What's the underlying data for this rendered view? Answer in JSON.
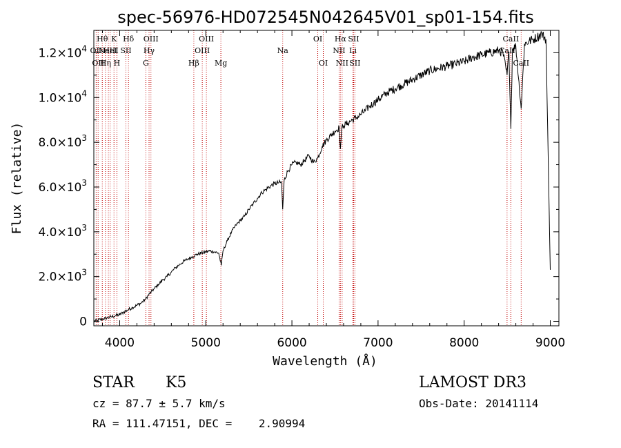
{
  "chart_data": {
    "type": "line",
    "title": "spec-56976-HD072545N042645V01_sp01-154.fits",
    "xlabel": "Wavelength (Å)",
    "ylabel": "Flux (relative)",
    "xlim": [
      3700,
      9100
    ],
    "ylim": [
      -200,
      13000
    ],
    "x_ticks": [
      {
        "value": 4000,
        "label": "4000"
      },
      {
        "value": 5000,
        "label": "5000"
      },
      {
        "value": 6000,
        "label": "6000"
      },
      {
        "value": 7000,
        "label": "7000"
      },
      {
        "value": 8000,
        "label": "8000"
      },
      {
        "value": 9000,
        "label": "9000"
      }
    ],
    "y_ticks": [
      {
        "value": 0,
        "mantissa": "0",
        "exp": ""
      },
      {
        "value": 2000,
        "mantissa": "2.0×10",
        "exp": "3"
      },
      {
        "value": 4000,
        "mantissa": "4.0×10",
        "exp": "3"
      },
      {
        "value": 6000,
        "mantissa": "6.0×10",
        "exp": "3"
      },
      {
        "value": 8000,
        "mantissa": "8.0×10",
        "exp": "3"
      },
      {
        "value": 10000,
        "mantissa": "1.0×10",
        "exp": "4"
      },
      {
        "value": 12000,
        "mantissa": "1.2×10",
        "exp": "4"
      }
    ],
    "series": [
      {
        "name": "spectrum",
        "x": [
          3700,
          3750,
          3800,
          3850,
          3900,
          3950,
          4000,
          4050,
          4100,
          4150,
          4200,
          4250,
          4300,
          4350,
          4400,
          4450,
          4500,
          4550,
          4600,
          4650,
          4700,
          4750,
          4800,
          4850,
          4900,
          4950,
          5000,
          5050,
          5100,
          5150,
          5180,
          5200,
          5250,
          5300,
          5350,
          5400,
          5450,
          5500,
          5550,
          5600,
          5650,
          5700,
          5750,
          5800,
          5850,
          5880,
          5893,
          5910,
          5950,
          6000,
          6050,
          6100,
          6150,
          6200,
          6250,
          6300,
          6350,
          6400,
          6450,
          6500,
          6550,
          6563,
          6580,
          6600,
          6650,
          6700,
          6750,
          6800,
          6850,
          6900,
          6950,
          7000,
          7100,
          7200,
          7300,
          7400,
          7500,
          7600,
          7700,
          7800,
          7900,
          8000,
          8100,
          8200,
          8300,
          8400,
          8450,
          8498,
          8520,
          8542,
          8560,
          8600,
          8662,
          8700,
          8750,
          8800,
          8850,
          8900,
          8950,
          9000
        ],
        "y": [
          0,
          50,
          100,
          150,
          200,
          250,
          300,
          420,
          520,
          620,
          720,
          820,
          1000,
          1250,
          1450,
          1650,
          1850,
          2000,
          2200,
          2400,
          2550,
          2700,
          2800,
          2900,
          3000,
          3050,
          3100,
          3150,
          3100,
          3050,
          2500,
          3150,
          3600,
          4000,
          4300,
          4500,
          4700,
          5000,
          5250,
          5500,
          5750,
          5900,
          6050,
          6150,
          6200,
          6200,
          5000,
          6300,
          6700,
          7000,
          7100,
          7000,
          7200,
          7400,
          7100,
          7300,
          7800,
          8100,
          8300,
          8500,
          8650,
          7700,
          8700,
          8750,
          8850,
          9000,
          9100,
          9250,
          9400,
          9600,
          9750,
          9900,
          10200,
          10400,
          10600,
          10800,
          11000,
          11200,
          11300,
          11400,
          11500,
          11600,
          11800,
          11900,
          12000,
          12100,
          12000,
          11000,
          12050,
          8600,
          12150,
          12300,
          9500,
          12400,
          12500,
          12600,
          12700,
          12850,
          12600,
          2300
        ]
      }
    ],
    "lines": [
      {
        "wave": 3727,
        "label": "OII",
        "row": 2
      },
      {
        "wave": 3750,
        "label": "OII",
        "row": 3
      },
      {
        "wave": 3798,
        "label": "Hθ",
        "row": 1
      },
      {
        "wave": 3835,
        "label": "Hη",
        "row": 3
      },
      {
        "wave": 3869,
        "label": "NeIII",
        "row": 2
      },
      {
        "wave": 3889,
        "label": "HeI",
        "row": 2
      },
      {
        "wave": 3934,
        "label": "K",
        "row": 1
      },
      {
        "wave": 3968,
        "label": "H",
        "row": 3
      },
      {
        "wave": 4072,
        "label": "SII",
        "row": 2
      },
      {
        "wave": 4102,
        "label": "Hδ",
        "row": 1
      },
      {
        "wave": 4304,
        "label": "G",
        "row": 3
      },
      {
        "wave": 4341,
        "label": "Hγ",
        "row": 2
      },
      {
        "wave": 4363,
        "label": "OIII",
        "row": 1
      },
      {
        "wave": 4861,
        "label": "Hβ",
        "row": 3
      },
      {
        "wave": 4959,
        "label": "OIII",
        "row": 2
      },
      {
        "wave": 5007,
        "label": "OIII",
        "row": 1
      },
      {
        "wave": 5175,
        "label": "Mg",
        "row": 3
      },
      {
        "wave": 5893,
        "label": "Na",
        "row": 2
      },
      {
        "wave": 6300,
        "label": "OI",
        "row": 1
      },
      {
        "wave": 6364,
        "label": "OI",
        "row": 3
      },
      {
        "wave": 6548,
        "label": "NII",
        "row": 2
      },
      {
        "wave": 6563,
        "label": "Hα",
        "row": 1
      },
      {
        "wave": 6583,
        "label": "NII",
        "row": 3
      },
      {
        "wave": 6708,
        "label": "Li",
        "row": 2
      },
      {
        "wave": 6716,
        "label": "SII",
        "row": 1
      },
      {
        "wave": 6731,
        "label": "SII",
        "row": 3
      },
      {
        "wave": 8498,
        "label": "CaII",
        "row": 2
      },
      {
        "wave": 8542,
        "label": "CaII",
        "row": 1
      },
      {
        "wave": 8662,
        "label": "CaII",
        "row": 3
      }
    ]
  },
  "info": {
    "class_label": "STAR",
    "subclass": "K5",
    "survey": "LAMOST DR3",
    "cz": "cz = 87.7 ± 5.7 km/s",
    "obs_date": "Obs-Date: 20141114",
    "coords": "RA = 111.47151, DEC =    2.90994"
  }
}
